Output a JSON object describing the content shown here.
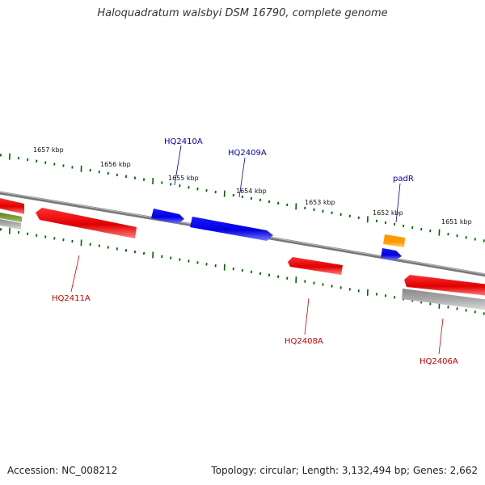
{
  "title": "Haloquadratum walsbyi DSM 16790, complete genome",
  "footer": {
    "accession": "Accession: NC_008212",
    "summary": "Topology: circular; Length: 3,132,494 bp; Genes: 2,662"
  },
  "colors": {
    "forward_gene": "#0000ee",
    "reverse_gene": "#ee0000",
    "forward_label": "#0000aa",
    "reverse_label": "#cc0000",
    "ticks": "#006400",
    "backbone": "#808080",
    "orange_feature": "#ff9900",
    "green_feature": "#6b8e23",
    "grey_feature": "#aaaaaa"
  },
  "ticks": [
    "1657 kbp",
    "1656 kbp",
    "1655 kbp",
    "1654 kbp",
    "1653 kbp",
    "1652 kbp",
    "1651 kbp"
  ],
  "genes": [
    {
      "name": "HQ2410A",
      "strand": "forward"
    },
    {
      "name": "HQ2409A",
      "strand": "forward"
    },
    {
      "name": "padR",
      "strand": "forward"
    },
    {
      "name": "HQ2411A",
      "strand": "reverse"
    },
    {
      "name": "HQ2408A",
      "strand": "reverse"
    },
    {
      "name": "HQ2406A",
      "strand": "reverse"
    }
  ]
}
